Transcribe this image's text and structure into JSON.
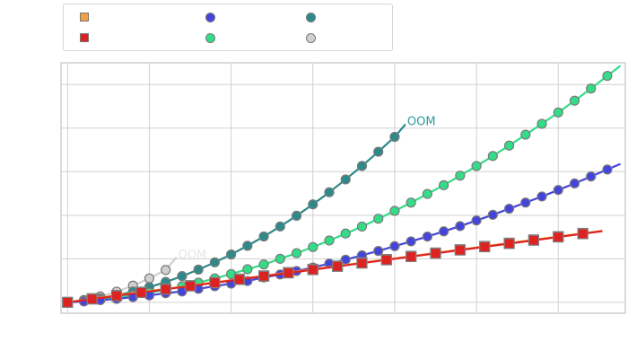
{
  "chart_data": {
    "type": "line",
    "title": "",
    "xlabel": "",
    "ylabel": "",
    "xlim": [
      -0.08,
      6.82
    ],
    "ylim": [
      -0.25,
      5.5
    ],
    "grid": true,
    "legend_position": "top-left",
    "x_gridlines": [
      0,
      1,
      2,
      3,
      4,
      5,
      6
    ],
    "y_gridlines": [
      0,
      1,
      2,
      3,
      4,
      5
    ],
    "series": [
      {
        "name": "",
        "color": "#f4a040",
        "marker": "square",
        "x": [
          0,
          0.3,
          0.6,
          0.9,
          1.2,
          1.5,
          1.8,
          2.1,
          2.4,
          2.7,
          3.0,
          3.3,
          3.6,
          3.9,
          4.2,
          4.5,
          4.8,
          5.1,
          5.4,
          5.7,
          6.0,
          6.3
        ],
        "y": [
          0,
          0.085,
          0.16,
          0.235,
          0.31,
          0.385,
          0.46,
          0.535,
          0.61,
          0.685,
          0.76,
          0.835,
          0.91,
          0.985,
          1.06,
          1.135,
          1.21,
          1.285,
          1.36,
          1.435,
          1.51,
          1.585
        ]
      },
      {
        "name": "",
        "color": "#dd2222",
        "marker": "square",
        "x": [
          0,
          0.3,
          0.6,
          0.9,
          1.2,
          1.5,
          1.8,
          2.1,
          2.4,
          2.7,
          3.0,
          3.3,
          3.6,
          3.9,
          4.2,
          4.5,
          4.8,
          5.1,
          5.4,
          5.7,
          6.0,
          6.3
        ],
        "y": [
          0,
          0.075,
          0.15,
          0.225,
          0.3,
          0.375,
          0.45,
          0.525,
          0.6,
          0.675,
          0.75,
          0.825,
          0.9,
          0.975,
          1.05,
          1.125,
          1.2,
          1.275,
          1.35,
          1.425,
          1.5,
          1.575
        ]
      },
      {
        "name": "",
        "color": "#4444dd",
        "marker": "circle",
        "x": [
          0,
          0.2,
          0.4,
          0.6,
          0.8,
          1.0,
          1.2,
          1.4,
          1.6,
          1.8,
          2.0,
          2.2,
          2.4,
          2.6,
          2.8,
          3.0,
          3.2,
          3.4,
          3.6,
          3.8,
          4.0,
          4.2,
          4.4,
          4.6,
          4.8,
          5.0,
          5.2,
          5.4,
          5.6,
          5.8,
          6.0,
          6.2,
          6.4,
          6.6
        ],
        "y": [
          0,
          0.02,
          0.05,
          0.08,
          0.12,
          0.16,
          0.21,
          0.25,
          0.31,
          0.37,
          0.43,
          0.49,
          0.57,
          0.64,
          0.72,
          0.8,
          0.89,
          0.98,
          1.08,
          1.18,
          1.29,
          1.4,
          1.51,
          1.63,
          1.75,
          1.88,
          2.01,
          2.15,
          2.29,
          2.43,
          2.58,
          2.73,
          2.89,
          3.05
        ]
      },
      {
        "name": "",
        "color": "#33dd88",
        "marker": "circle",
        "x": [
          0,
          0.2,
          0.4,
          0.6,
          0.8,
          1.0,
          1.2,
          1.4,
          1.6,
          1.8,
          2.0,
          2.2,
          2.4,
          2.6,
          2.8,
          3.0,
          3.2,
          3.4,
          3.6,
          3.8,
          4.0,
          4.2,
          4.4,
          4.6,
          4.8,
          5.0,
          5.2,
          5.4,
          5.6,
          5.8,
          6.0,
          6.2,
          6.4,
          6.6
        ],
        "y": [
          0,
          0.03,
          0.06,
          0.11,
          0.16,
          0.22,
          0.29,
          0.37,
          0.45,
          0.55,
          0.65,
          0.76,
          0.87,
          1.0,
          1.13,
          1.27,
          1.42,
          1.58,
          1.74,
          1.92,
          2.1,
          2.29,
          2.49,
          2.69,
          2.91,
          3.13,
          3.36,
          3.6,
          3.85,
          4.1,
          4.36,
          4.63,
          4.91,
          5.2
        ]
      },
      {
        "name": "",
        "color": "#2e8a8a",
        "marker": "circle",
        "annotation": "OOM",
        "x": [
          0,
          0.2,
          0.4,
          0.6,
          0.8,
          1.0,
          1.2,
          1.4,
          1.6,
          1.8,
          2.0,
          2.2,
          2.4,
          2.6,
          2.8,
          3.0,
          3.2,
          3.4,
          3.6,
          3.8,
          4.0
        ],
        "y": [
          0,
          0.038,
          0.092,
          0.162,
          0.248,
          0.35,
          0.468,
          0.602,
          0.752,
          0.918,
          1.1,
          1.298,
          1.512,
          1.742,
          1.988,
          2.25,
          2.528,
          2.822,
          3.132,
          3.458,
          3.8
        ]
      },
      {
        "name": "",
        "color": "#d0d0d0",
        "marker": "circle",
        "annotation": "OOM",
        "x": [
          0,
          0.2,
          0.4,
          0.6,
          0.8,
          1.0,
          1.2
        ],
        "y": [
          0,
          0.054,
          0.136,
          0.246,
          0.384,
          0.55,
          0.744
        ]
      }
    ]
  }
}
